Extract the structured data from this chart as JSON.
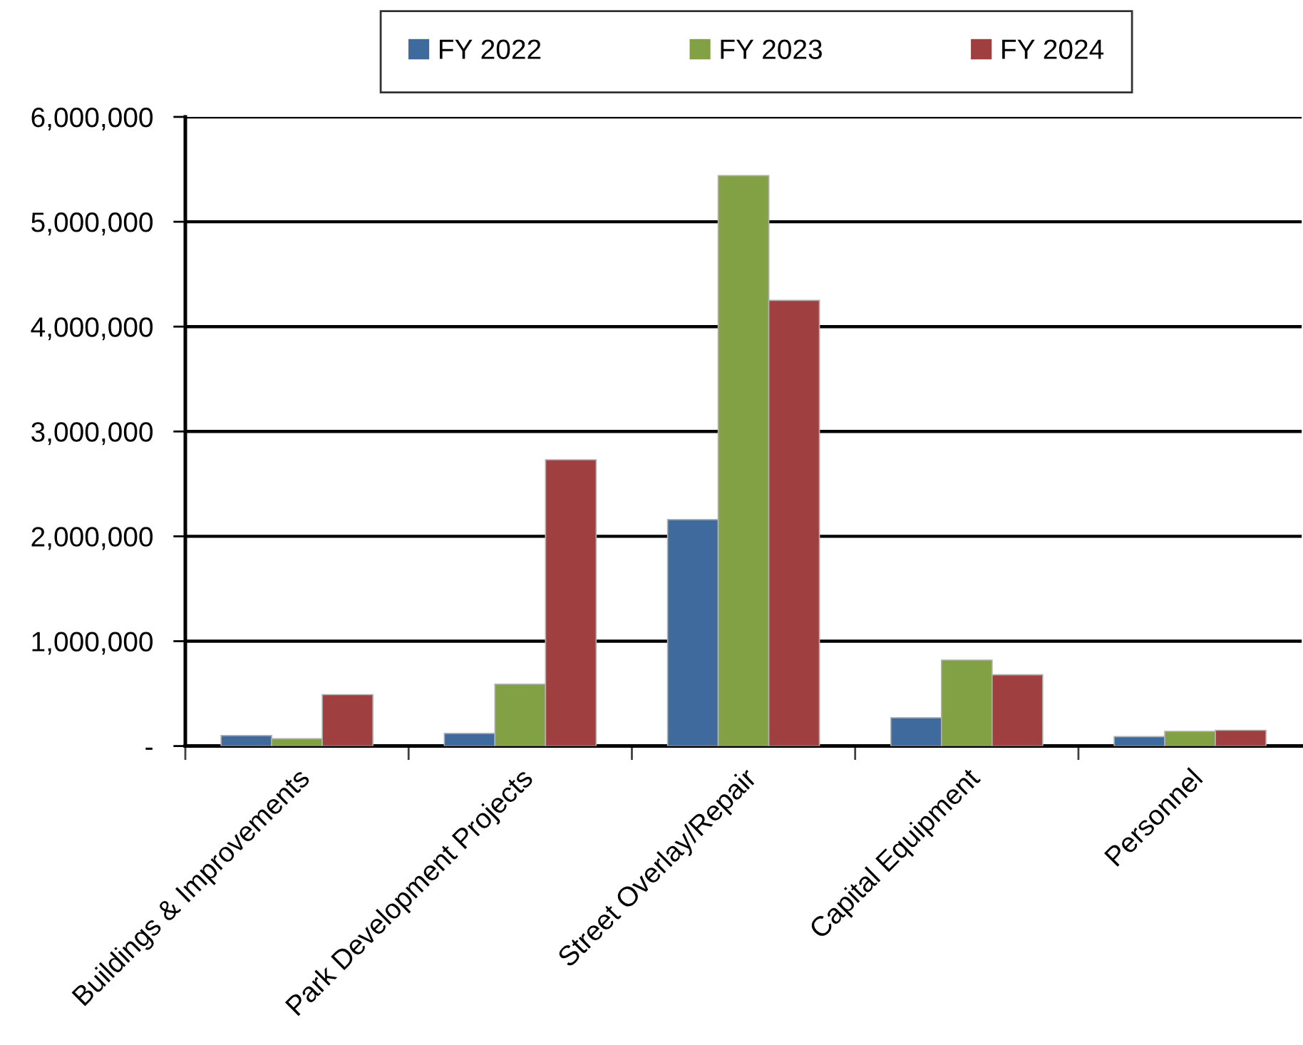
{
  "chart_data": {
    "type": "bar",
    "categories": [
      "Buildings & Improvements",
      "Park Development Projects",
      "Street Overlay/Repair",
      "Capital Equipment",
      "Personnel"
    ],
    "series": [
      {
        "name": "FY 2022",
        "color": "#3f6a9e",
        "values": [
          100000,
          120000,
          2160000,
          270000,
          90000
        ]
      },
      {
        "name": "FY 2023",
        "color": "#82a044",
        "values": [
          70000,
          590000,
          5440000,
          820000,
          140000
        ]
      },
      {
        "name": "FY 2024",
        "color": "#a03f3f",
        "values": [
          490000,
          2730000,
          4250000,
          680000,
          150000
        ]
      }
    ],
    "ylim": [
      0,
      6000000
    ],
    "yticks": [
      {
        "value": 0,
        "label": "-"
      },
      {
        "value": 1000000,
        "label": "1,000,000"
      },
      {
        "value": 2000000,
        "label": "2,000,000"
      },
      {
        "value": 3000000,
        "label": "3,000,000"
      },
      {
        "value": 4000000,
        "label": "4,000,000"
      },
      {
        "value": 5000000,
        "label": "5,000,000"
      },
      {
        "value": 6000000,
        "label": "6,000,000"
      }
    ],
    "grid": "y",
    "legend": "top"
  }
}
